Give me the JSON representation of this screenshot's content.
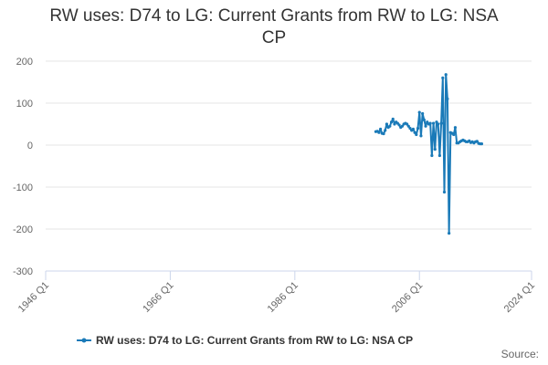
{
  "chart_data": {
    "type": "line",
    "title": "RW uses: D74 to LG: Current Grants from RW to LG: NSA CP",
    "x": [
      "1999 Q1",
      "1999 Q2",
      "1999 Q3",
      "1999 Q4",
      "2000 Q1",
      "2000 Q2",
      "2000 Q3",
      "2000 Q4",
      "2001 Q1",
      "2001 Q2",
      "2001 Q3",
      "2001 Q4",
      "2002 Q1",
      "2002 Q2",
      "2002 Q3",
      "2002 Q4",
      "2003 Q1",
      "2003 Q2",
      "2003 Q3",
      "2003 Q4",
      "2004 Q1",
      "2004 Q2",
      "2004 Q3",
      "2004 Q4",
      "2005 Q1",
      "2005 Q2",
      "2005 Q3",
      "2005 Q4",
      "2006 Q1",
      "2006 Q2",
      "2006 Q3",
      "2006 Q4",
      "2007 Q1",
      "2007 Q2",
      "2007 Q3",
      "2007 Q4",
      "2008 Q1",
      "2008 Q2",
      "2008 Q3",
      "2008 Q4",
      "2009 Q1",
      "2009 Q2",
      "2009 Q3",
      "2009 Q4",
      "2010 Q1",
      "2010 Q2",
      "2010 Q3",
      "2010 Q4",
      "2011 Q1",
      "2011 Q2",
      "2011 Q3",
      "2011 Q4",
      "2012 Q1",
      "2012 Q2",
      "2012 Q3",
      "2012 Q4",
      "2013 Q1",
      "2013 Q2",
      "2013 Q3",
      "2013 Q4",
      "2014 Q1",
      "2014 Q2",
      "2014 Q3",
      "2014 Q4",
      "2015 Q1",
      "2015 Q2",
      "2015 Q3",
      "2015 Q4",
      "2016 Q1"
    ],
    "series": [
      {
        "name": "RW uses: D74 to LG: Current Grants from RW to LG: NSA CP",
        "color": "#1a7ab8",
        "values": [
          32,
          33,
          30,
          38,
          28,
          27,
          35,
          50,
          42,
          45,
          55,
          62,
          50,
          55,
          52,
          48,
          42,
          45,
          50,
          52,
          50,
          45,
          40,
          35,
          38,
          30,
          25,
          40,
          78,
          22,
          75,
          60,
          45,
          55,
          50,
          52,
          -25,
          52,
          -10,
          55,
          50,
          -25,
          52,
          160,
          -112,
          168,
          110,
          -210,
          30,
          28,
          25,
          42,
          5,
          5,
          8,
          10,
          12,
          10,
          8,
          8,
          10,
          6,
          8,
          5,
          8,
          9,
          4,
          3,
          3
        ]
      }
    ],
    "xlim": [
      "1946 Q1",
      "2024 Q1"
    ],
    "xticks": [
      "1946 Q1",
      "1966 Q1",
      "1986 Q1",
      "2006 Q1",
      "2024 Q1"
    ],
    "ylim": [
      -300,
      200
    ],
    "yticks": [
      -300,
      -200,
      -100,
      0,
      100,
      200
    ],
    "grid": true,
    "legend": "bottom",
    "source_label": "Source:"
  }
}
